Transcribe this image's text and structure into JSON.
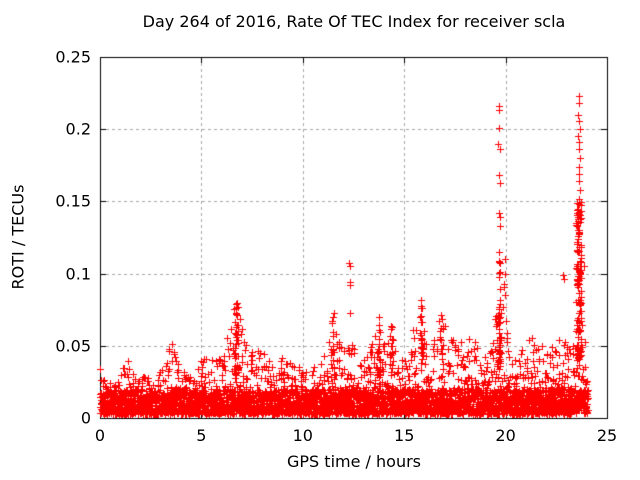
{
  "title": "Day 264 of 2016, Rate Of TEC Index for receiver scla",
  "chart_data": {
    "type": "scatter",
    "title": "Day 264 of 2016, Rate Of TEC Index for receiver scla",
    "xlabel": "GPS time / hours",
    "ylabel": "ROTI / TECUs",
    "xlim": [
      0,
      25
    ],
    "ylim": [
      0,
      0.25
    ],
    "t_range": [
      0,
      24
    ],
    "xticks": [
      0,
      5,
      10,
      15,
      20,
      25
    ],
    "xtick_labels": [
      "0",
      "5",
      "10",
      "15",
      "20",
      "25"
    ],
    "yticks": [
      0,
      0.05,
      0.1,
      0.15,
      0.2,
      0.25
    ],
    "ytick_labels": [
      "0",
      "0.05",
      "0.1",
      "0.15",
      "0.2",
      "0.25"
    ],
    "grid": true,
    "legend": "none",
    "background": "#ffffff",
    "border_color": "#000000",
    "grid_color": "#a8a8a8",
    "marker": {
      "shape": "plus",
      "color": "#ff0000",
      "size": 7
    },
    "seed": 1337,
    "base_band": [
      0.003,
      0.02
    ],
    "points_per_bin": 11,
    "bin_hours": 0.06,
    "envelope": [
      [
        0.0,
        0.03
      ],
      [
        0.3,
        0.034
      ],
      [
        0.6,
        0.028
      ],
      [
        1.0,
        0.034
      ],
      [
        1.3,
        0.044
      ],
      [
        1.6,
        0.036
      ],
      [
        2.0,
        0.028
      ],
      [
        2.4,
        0.03
      ],
      [
        2.8,
        0.032
      ],
      [
        3.2,
        0.036
      ],
      [
        3.6,
        0.06
      ],
      [
        3.9,
        0.04
      ],
      [
        4.3,
        0.036
      ],
      [
        4.7,
        0.034
      ],
      [
        5.0,
        0.04
      ],
      [
        5.3,
        0.048
      ],
      [
        5.6,
        0.04
      ],
      [
        6.0,
        0.046
      ],
      [
        6.4,
        0.065
      ],
      [
        6.75,
        0.09
      ],
      [
        7.1,
        0.056
      ],
      [
        7.5,
        0.046
      ],
      [
        7.9,
        0.052
      ],
      [
        8.3,
        0.044
      ],
      [
        8.7,
        0.04
      ],
      [
        9.0,
        0.046
      ],
      [
        9.4,
        0.038
      ],
      [
        9.8,
        0.036
      ],
      [
        10.2,
        0.032
      ],
      [
        10.6,
        0.036
      ],
      [
        11.0,
        0.042
      ],
      [
        11.45,
        0.076
      ],
      [
        11.8,
        0.055
      ],
      [
        12.1,
        0.046
      ],
      [
        12.4,
        0.052
      ],
      [
        12.8,
        0.04
      ],
      [
        13.1,
        0.046
      ],
      [
        13.45,
        0.052
      ],
      [
        13.75,
        0.074
      ],
      [
        14.05,
        0.058
      ],
      [
        14.35,
        0.066
      ],
      [
        14.7,
        0.05
      ],
      [
        15.0,
        0.046
      ],
      [
        15.35,
        0.056
      ],
      [
        15.85,
        0.088
      ],
      [
        16.2,
        0.056
      ],
      [
        16.5,
        0.06
      ],
      [
        16.85,
        0.075
      ],
      [
        17.2,
        0.06
      ],
      [
        17.6,
        0.05
      ],
      [
        18.0,
        0.056
      ],
      [
        18.35,
        0.062
      ],
      [
        18.7,
        0.048
      ],
      [
        19.0,
        0.046
      ],
      [
        19.35,
        0.052
      ],
      [
        19.7,
        0.112
      ],
      [
        19.95,
        0.1
      ],
      [
        20.2,
        0.05
      ],
      [
        20.6,
        0.046
      ],
      [
        21.0,
        0.052
      ],
      [
        21.35,
        0.058
      ],
      [
        21.7,
        0.05
      ],
      [
        22.1,
        0.05
      ],
      [
        22.5,
        0.056
      ],
      [
        22.85,
        0.062
      ],
      [
        23.2,
        0.046
      ],
      [
        23.45,
        0.09
      ],
      [
        23.65,
        0.145
      ],
      [
        23.85,
        0.12
      ],
      [
        24.0,
        0.03
      ]
    ],
    "columns": [
      {
        "t": 6.75,
        "spread": 0.1,
        "y0": 0.03,
        "y1": 0.088,
        "n": 28
      },
      {
        "t": 11.45,
        "spread": 0.07,
        "y0": 0.028,
        "y1": 0.074,
        "n": 18
      },
      {
        "t": 13.75,
        "spread": 0.07,
        "y0": 0.028,
        "y1": 0.07,
        "n": 16
      },
      {
        "t": 14.35,
        "spread": 0.07,
        "y0": 0.028,
        "y1": 0.062,
        "n": 14
      },
      {
        "t": 15.85,
        "spread": 0.06,
        "y0": 0.03,
        "y1": 0.086,
        "n": 22
      },
      {
        "t": 16.85,
        "spread": 0.09,
        "y0": 0.028,
        "y1": 0.072,
        "n": 20
      },
      {
        "t": 19.7,
        "spread": 0.06,
        "y0": 0.035,
        "y1": 0.11,
        "n": 40
      },
      {
        "t": 23.6,
        "spread": 0.13,
        "y0": 0.04,
        "y1": 0.15,
        "n": 130
      }
    ],
    "outliers": [
      [
        0.02,
        0.034
      ],
      [
        0.03,
        0.017
      ],
      [
        12.3,
        0.107
      ],
      [
        12.34,
        0.105
      ],
      [
        12.31,
        0.094
      ],
      [
        12.35,
        0.092
      ],
      [
        12.32,
        0.073
      ],
      [
        19.65,
        0.216
      ],
      [
        19.69,
        0.213
      ],
      [
        19.67,
        0.201
      ],
      [
        19.64,
        0.19
      ],
      [
        19.71,
        0.186
      ],
      [
        19.68,
        0.168
      ],
      [
        19.72,
        0.163
      ],
      [
        19.66,
        0.142
      ],
      [
        19.73,
        0.139
      ],
      [
        19.7,
        0.133
      ],
      [
        19.69,
        0.115
      ],
      [
        19.95,
        0.11
      ],
      [
        19.98,
        0.1
      ],
      [
        19.93,
        0.093
      ],
      [
        19.96,
        0.085
      ],
      [
        22.85,
        0.099
      ],
      [
        22.88,
        0.096
      ],
      [
        23.6,
        0.223
      ],
      [
        23.64,
        0.218
      ],
      [
        23.58,
        0.21
      ],
      [
        23.62,
        0.206
      ],
      [
        23.66,
        0.2
      ],
      [
        23.59,
        0.195
      ],
      [
        23.63,
        0.191
      ],
      [
        23.61,
        0.186
      ],
      [
        23.65,
        0.18
      ],
      [
        23.6,
        0.174
      ],
      [
        23.64,
        0.169
      ],
      [
        23.62,
        0.164
      ],
      [
        23.66,
        0.158
      ],
      [
        23.61,
        0.152
      ],
      [
        23.63,
        0.148
      ]
    ]
  }
}
